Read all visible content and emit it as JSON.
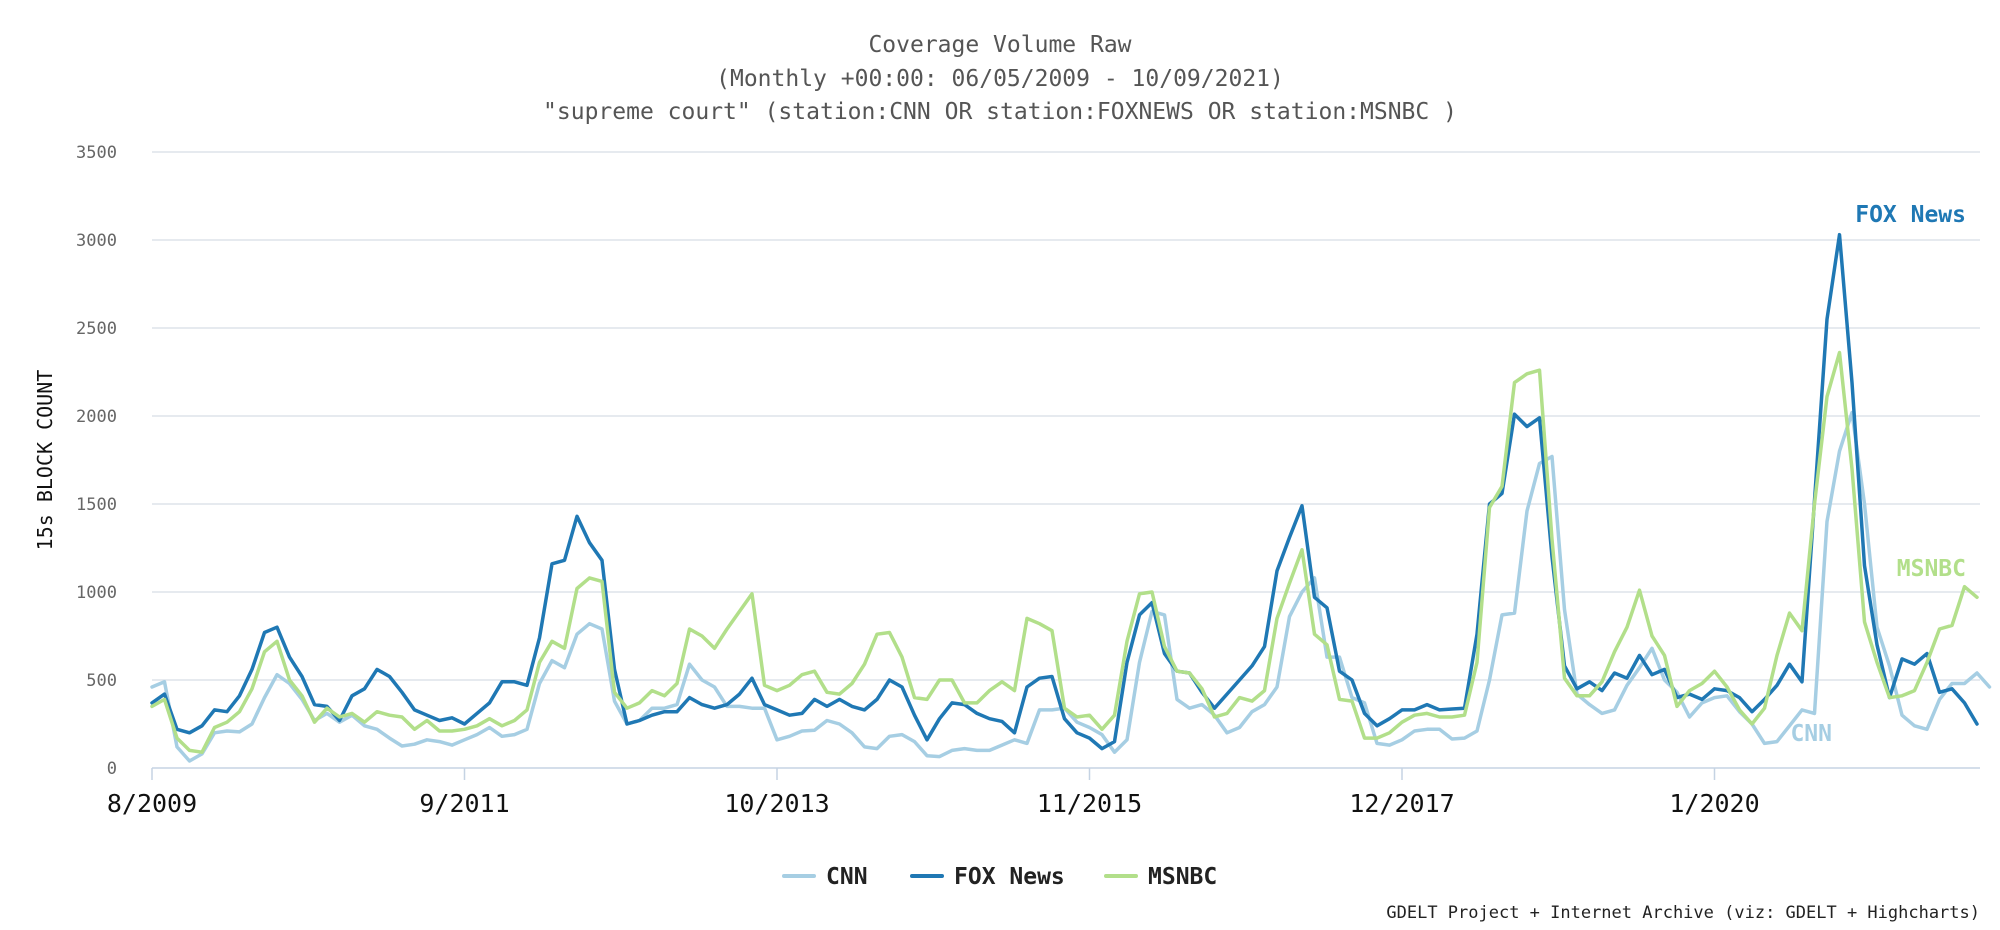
{
  "chart_data": {
    "type": "line",
    "title": "Coverage Volume Raw",
    "subtitle_1": "(Monthly +00:00: 06/05/2009 - 10/09/2021)",
    "subtitle_2": "\"supreme court\" (station:CNN OR station:FOXNEWS OR station:MSNBC )",
    "ylabel": "15s BLOCK COUNT",
    "xlabel": "",
    "ylim": [
      0,
      3500
    ],
    "y_ticks": [
      0,
      500,
      1000,
      1500,
      2000,
      2500,
      3000,
      3500
    ],
    "x_tick_labels": [
      "8/2009",
      "9/2011",
      "10/2013",
      "11/2015",
      "12/2017",
      "1/2020"
    ],
    "x_tick_index": [
      0,
      25,
      50,
      75,
      100,
      125
    ],
    "grid": true,
    "legend_position": "bottom-center",
    "credit": "GDELT Project + Internet Archive (viz: GDELT + Highcharts)",
    "series": [
      {
        "name": "CNN",
        "color": "#a6cee3",
        "end_label": "CNN",
        "values": [
          460,
          490,
          120,
          40,
          80,
          200,
          210,
          205,
          250,
          400,
          530,
          480,
          390,
          270,
          310,
          260,
          300,
          240,
          220,
          170,
          125,
          135,
          160,
          150,
          130,
          160,
          190,
          230,
          180,
          190,
          220,
          480,
          610,
          570,
          760,
          820,
          790,
          380,
          250,
          270,
          340,
          340,
          360,
          590,
          500,
          460,
          350,
          350,
          340,
          340,
          160,
          180,
          210,
          215,
          270,
          250,
          200,
          120,
          110,
          180,
          190,
          150,
          70,
          65,
          100,
          110,
          100,
          100,
          130,
          160,
          140,
          330,
          330,
          340,
          260,
          230,
          190,
          90,
          160,
          600,
          890,
          870,
          390,
          340,
          360,
          300,
          200,
          230,
          320,
          360,
          460,
          860,
          1000,
          1080,
          630,
          630,
          400,
          370,
          140,
          130,
          160,
          210,
          220,
          220,
          165,
          170,
          210,
          500,
          870,
          880,
          1460,
          1730,
          1770,
          900,
          420,
          360,
          310,
          330,
          470,
          570,
          680,
          500,
          430,
          290,
          370,
          400,
          410,
          320,
          250,
          140,
          150,
          240,
          330,
          310,
          1400,
          1800,
          2020,
          1500,
          800,
          580,
          300,
          240,
          220,
          390,
          480,
          480,
          540,
          460
        ]
      },
      {
        "name": "FOX News",
        "color": "#1f78b4",
        "end_label": "FOX News",
        "values": [
          370,
          420,
          220,
          200,
          240,
          330,
          320,
          410,
          560,
          770,
          800,
          630,
          520,
          360,
          350,
          270,
          410,
          450,
          560,
          520,
          430,
          330,
          300,
          270,
          285,
          250,
          310,
          370,
          490,
          490,
          470,
          740,
          1160,
          1180,
          1430,
          1280,
          1180,
          560,
          250,
          270,
          300,
          320,
          320,
          400,
          360,
          340,
          360,
          420,
          510,
          360,
          330,
          300,
          310,
          390,
          350,
          390,
          350,
          330,
          390,
          500,
          460,
          300,
          160,
          280,
          370,
          360,
          310,
          280,
          265,
          200,
          460,
          510,
          520,
          280,
          200,
          170,
          110,
          150,
          600,
          870,
          940,
          650,
          550,
          540,
          430,
          340,
          420,
          500,
          580,
          690,
          1120,
          1310,
          1490,
          970,
          910,
          550,
          500,
          310,
          240,
          280,
          330,
          330,
          360,
          330,
          335,
          340,
          760,
          1500,
          1560,
          2010,
          1940,
          1990,
          1200,
          580,
          450,
          490,
          440,
          540,
          510,
          640,
          530,
          560,
          400,
          420,
          390,
          450,
          440,
          400,
          320,
          390,
          470,
          590,
          490,
          1520,
          2550,
          3030,
          2190,
          1150,
          700,
          400,
          620,
          590,
          650,
          430,
          450,
          370,
          250
        ]
      },
      {
        "name": "MSNBC",
        "color": "#b2df8a",
        "end_label": "MSNBC",
        "values": [
          350,
          390,
          170,
          100,
          90,
          230,
          260,
          320,
          450,
          660,
          720,
          500,
          410,
          260,
          340,
          290,
          310,
          260,
          320,
          300,
          290,
          220,
          270,
          210,
          210,
          220,
          240,
          280,
          240,
          270,
          330,
          600,
          720,
          680,
          1020,
          1080,
          1060,
          430,
          340,
          370,
          440,
          410,
          480,
          790,
          750,
          680,
          790,
          890,
          990,
          470,
          440,
          470,
          530,
          550,
          430,
          420,
          480,
          590,
          760,
          770,
          630,
          400,
          390,
          500,
          500,
          370,
          370,
          440,
          490,
          440,
          850,
          820,
          780,
          340,
          290,
          300,
          220,
          300,
          720,
          990,
          1000,
          690,
          550,
          540,
          450,
          290,
          310,
          400,
          380,
          440,
          850,
          1050,
          1240,
          760,
          700,
          390,
          380,
          170,
          170,
          200,
          260,
          300,
          310,
          290,
          290,
          300,
          600,
          1480,
          1600,
          2190,
          2240,
          2260,
          1300,
          510,
          410,
          410,
          490,
          660,
          800,
          1010,
          750,
          640,
          350,
          440,
          480,
          550,
          460,
          330,
          250,
          340,
          640,
          880,
          780,
          1500,
          2110,
          2360,
          1700,
          830,
          600,
          400,
          410,
          440,
          600,
          790,
          810,
          1030,
          970
        ]
      }
    ]
  }
}
